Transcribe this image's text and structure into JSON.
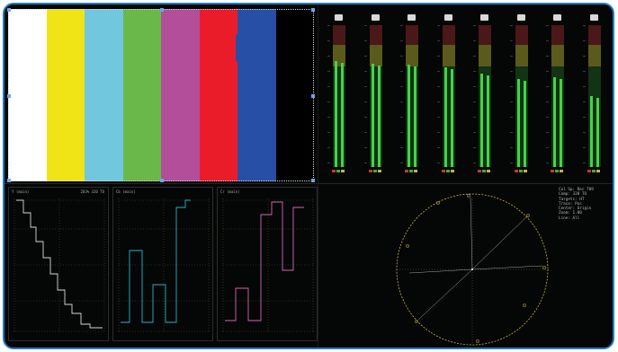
{
  "colors": {
    "frame_border": "#1f7fc1",
    "background": "#050606",
    "bar_colors": [
      "#ffffff",
      "#f0e416",
      "#71c8de",
      "#6ab84a",
      "#b34e9b",
      "#ea1c2a",
      "#284fa6",
      "#000000"
    ],
    "meter_level": "#46d24a",
    "luma_trace": "#f0f0f0",
    "cb_trace": "#29c8e0",
    "cr_trace": "#f070c8",
    "graticule": "#c8b24a"
  },
  "color_bars": {
    "bars": [
      "white",
      "yellow",
      "cyan",
      "green",
      "magenta",
      "red",
      "blue",
      "black"
    ]
  },
  "meters": {
    "levels": [
      0.75,
      0.73,
      0.72,
      0.7,
      0.66,
      0.62,
      0.63,
      0.5
    ]
  },
  "waveforms": [
    {
      "title": "Y (main)",
      "title2": "283%    320 TO",
      "trace": "luma"
    },
    {
      "title": "Cb (main)",
      "title2": "",
      "trace": "cb"
    },
    {
      "title": "Cr (main)",
      "title2": "",
      "trace": "cr"
    }
  ],
  "vectorscope": {
    "readout": [
      "Col Sp:  Rec 709",
      "Comp:    328 TO",
      "Targets: HT",
      "Trace:   Pos",
      "Center:  Origin",
      "Zoom:    1.00",
      "Line:    All"
    ]
  }
}
